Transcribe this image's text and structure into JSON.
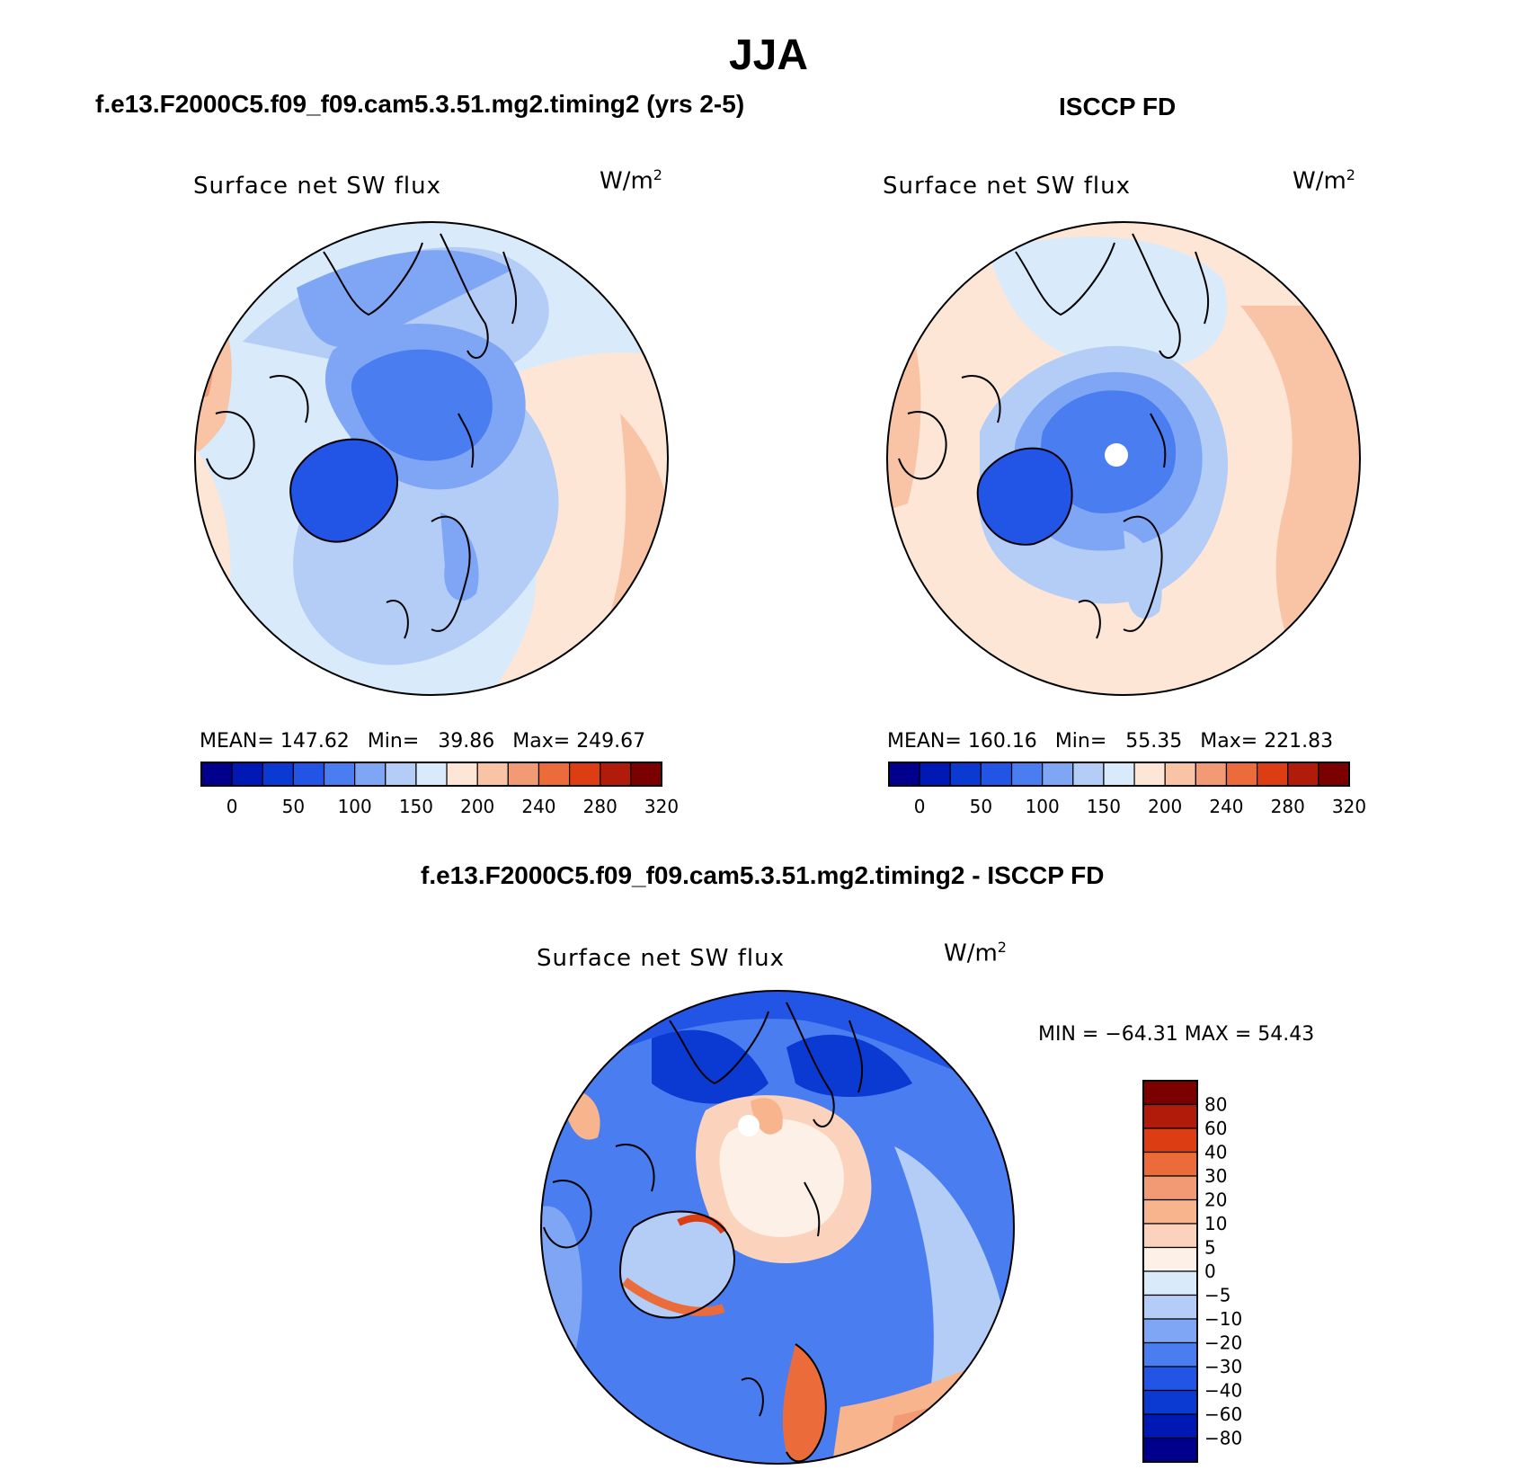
{
  "page": {
    "title": "JJA"
  },
  "panels": [
    {
      "case_title": "f.e13.F2000C5.f09_f09.cam5.3.51.mg2.timing2 (yrs 2-5)",
      "plot_title": "Surface net SW flux",
      "units": "W/m",
      "units_exp": "2",
      "mean_label": "MEAN=",
      "mean": "147.62",
      "min_label": "Min=",
      "min": "39.86",
      "max_label": "Max=",
      "max": "249.67"
    },
    {
      "case_title": "ISCCP FD",
      "plot_title": "Surface net SW flux",
      "units": "W/m",
      "units_exp": "2",
      "mean_label": "MEAN=",
      "mean": "160.16",
      "min_label": "Min=",
      "min": "55.35",
      "max_label": "Max=",
      "max": "221.83"
    }
  ],
  "diff": {
    "case_title": "f.e13.F2000C5.f09_f09.cam5.3.51.mg2.timing2 - ISCCP FD",
    "plot_title": "Surface net SW flux",
    "units": "W/m",
    "units_exp": "2",
    "minmax_text": "MIN = −64.31 MAX =   54.43"
  },
  "chart_data": [
    {
      "type": "heatmap",
      "projection": "north-polar-stereographic",
      "title": "Surface net SW flux",
      "subtitle": "f.e13.F2000C5.f09_f09.cam5.3.51.mg2.timing2 (yrs 2-5)",
      "units": "W/m2",
      "stats": {
        "mean": 147.62,
        "min": 39.86,
        "max": 249.67
      },
      "colorbar": {
        "orientation": "horizontal",
        "tick_labels": [
          "0",
          "50",
          "100",
          "150",
          "200",
          "240",
          "280",
          "320"
        ],
        "colors": [
          "#00008c",
          "#0019b4",
          "#0a3ad2",
          "#2255e6",
          "#4a7df0",
          "#7fa6f5",
          "#b3cdf7",
          "#d9eafb",
          "#fde6d6",
          "#f8c4a5",
          "#f29a73",
          "#ec6b3a",
          "#dc3d12",
          "#b01b0a",
          "#7b0000"
        ]
      }
    },
    {
      "type": "heatmap",
      "projection": "north-polar-stereographic",
      "title": "Surface net SW flux",
      "subtitle": "ISCCP FD",
      "units": "W/m2",
      "stats": {
        "mean": 160.16,
        "min": 55.35,
        "max": 221.83
      },
      "colorbar": {
        "orientation": "horizontal",
        "tick_labels": [
          "0",
          "50",
          "100",
          "150",
          "200",
          "240",
          "280",
          "320"
        ],
        "colors": [
          "#00008c",
          "#0019b4",
          "#0a3ad2",
          "#2255e6",
          "#4a7df0",
          "#7fa6f5",
          "#b3cdf7",
          "#d9eafb",
          "#fde6d6",
          "#f8c4a5",
          "#f29a73",
          "#ec6b3a",
          "#dc3d12",
          "#b01b0a",
          "#7b0000"
        ]
      }
    },
    {
      "type": "heatmap",
      "projection": "north-polar-stereographic",
      "title": "Surface net SW flux",
      "subtitle": "f.e13.F2000C5.f09_f09.cam5.3.51.mg2.timing2 - ISCCP FD",
      "units": "W/m2",
      "stats": {
        "min": -64.31,
        "max": 54.43
      },
      "colorbar": {
        "orientation": "vertical",
        "tick_labels": [
          "80",
          "60",
          "40",
          "30",
          "20",
          "10",
          "5",
          "0",
          "−5",
          "−10",
          "−20",
          "−30",
          "−40",
          "−60",
          "−80"
        ],
        "colors": [
          "#7b0000",
          "#b01b0a",
          "#dc3d12",
          "#ec6b3a",
          "#f29a73",
          "#f8b48c",
          "#fbd2bb",
          "#fdf0e6",
          "#d9eafb",
          "#b3cdf7",
          "#7fa6f5",
          "#4a7df0",
          "#2255e6",
          "#0a3ad2",
          "#0019b4",
          "#00008c"
        ]
      }
    }
  ]
}
